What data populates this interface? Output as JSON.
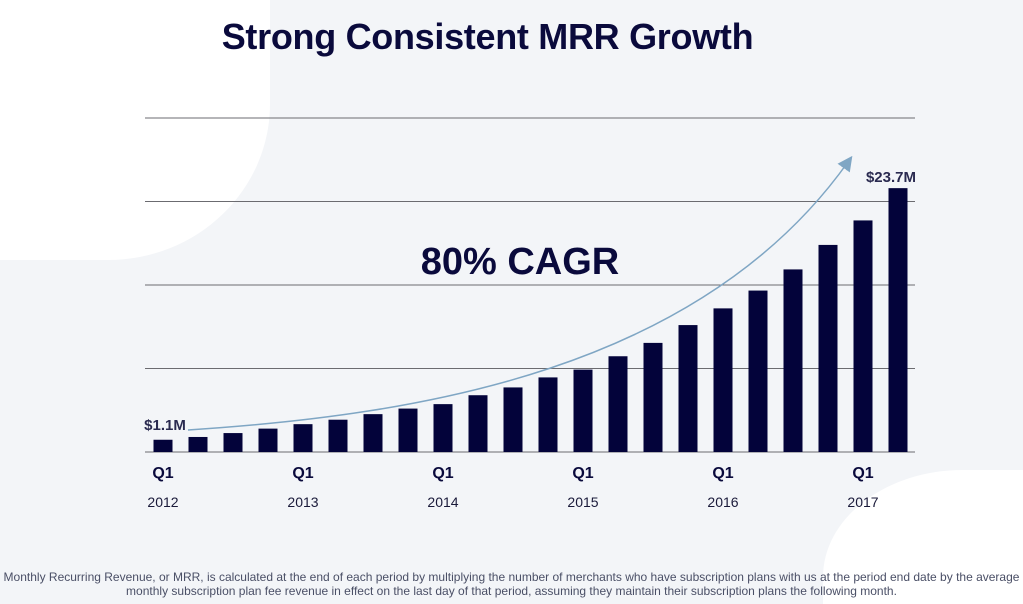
{
  "title": "Strong Consistent MRR Growth",
  "footnote": "Monthly Recurring Revenue, or MRR, is calculated at the end of each period by multiplying the number of merchants who have subscription plans with us at the period end date by the average monthly subscription plan fee revenue in effect on the last day of that period, assuming they maintain their subscription plans the following month.",
  "chart_data": {
    "type": "bar",
    "title": "Strong Consistent MRR Growth",
    "categories": [
      "Q1 2012",
      "Q2 2012",
      "Q3 2012",
      "Q4 2012",
      "Q1 2013",
      "Q2 2013",
      "Q3 2013",
      "Q4 2013",
      "Q1 2014",
      "Q2 2014",
      "Q3 2014",
      "Q4 2014",
      "Q1 2015",
      "Q2 2015",
      "Q3 2015",
      "Q4 2015",
      "Q1 2016",
      "Q2 2016",
      "Q3 2016",
      "Q4 2016",
      "Q1 2017",
      "Q2 2017"
    ],
    "values": [
      1.1,
      1.35,
      1.7,
      2.1,
      2.5,
      2.9,
      3.4,
      3.9,
      4.3,
      5.1,
      5.8,
      6.7,
      7.4,
      8.6,
      9.8,
      11.4,
      12.9,
      14.5,
      16.4,
      18.6,
      20.8,
      23.7
    ],
    "unit": "$M",
    "tick_labels": [
      {
        "quarter": "Q1",
        "year": "2012",
        "index": 0
      },
      {
        "quarter": "Q1",
        "year": "2013",
        "index": 4
      },
      {
        "quarter": "Q1",
        "year": "2014",
        "index": 8
      },
      {
        "quarter": "Q1",
        "year": "2015",
        "index": 12
      },
      {
        "quarter": "Q1",
        "year": "2016",
        "index": 16
      },
      {
        "quarter": "Q1",
        "year": "2017",
        "index": 20
      }
    ],
    "data_labels": [
      {
        "index": 0,
        "text": "$1.1M"
      },
      {
        "index": 21,
        "text": "$23.7M"
      }
    ],
    "annotation": "80% CAGR",
    "ylim": [
      0,
      30
    ],
    "gridlines": [
      0,
      7.5,
      15,
      22.5,
      30
    ],
    "grid": true,
    "y_axis_labels": false,
    "colors": {
      "bar": "#03033a",
      "grid": "#6b6b70",
      "arrow": "#7fa6c4",
      "text": "#0a0a3c"
    }
  }
}
